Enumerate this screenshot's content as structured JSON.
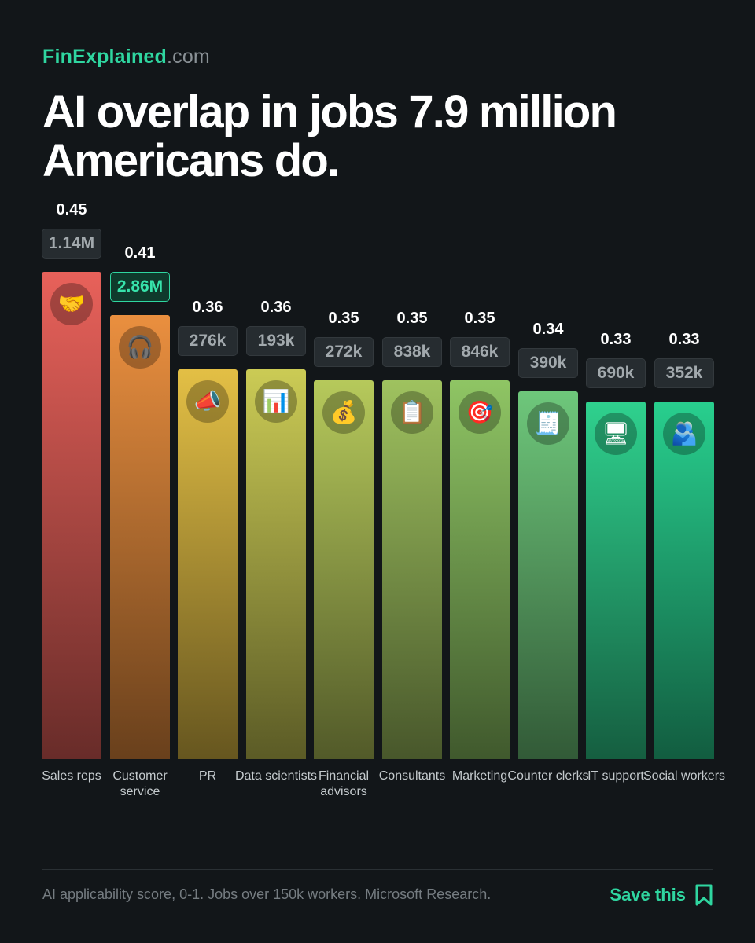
{
  "brand": {
    "name": "FinExplained",
    "suffix": ".com"
  },
  "headline": "AI overlap in jobs 7.9 million Americans do.",
  "chart_data": {
    "type": "bar",
    "title": "AI overlap in jobs 7.9 million Americans do.",
    "categories": [
      "Sales reps",
      "Customer service",
      "PR",
      "Data scientists",
      "Financial advisors",
      "Consultants",
      "Marketing",
      "Counter clerks",
      "IT support",
      "Social workers"
    ],
    "series": [
      {
        "values": [
          0.45,
          0.41,
          0.36,
          0.36,
          0.35,
          0.35,
          0.35,
          0.34,
          0.33,
          0.33
        ]
      }
    ],
    "score_labels": [
      "0.45",
      "0.41",
      "0.36",
      "0.36",
      "0.35",
      "0.35",
      "0.35",
      "0.34",
      "0.33",
      "0.33"
    ],
    "worker_labels": [
      "1.14M",
      "2.86M",
      "276k",
      "193k",
      "272k",
      "838k",
      "846k",
      "390k",
      "690k",
      "352k"
    ],
    "highlighted_index": 1,
    "icons": [
      "handshake-icon",
      "headphones-icon",
      "megaphone-icon",
      "bar-chart-icon",
      "money-bag-icon",
      "clipboard-icon",
      "target-icon",
      "receipt-icon",
      "computer-icon",
      "people-hugging-icon"
    ],
    "icon_glyphs": [
      "🤝",
      "🎧",
      "📣",
      "📊",
      "💰",
      "📋",
      "🎯",
      "🧾",
      "🖥",
      "🫂"
    ],
    "colors": [
      "#e8615a",
      "#ea8f3f",
      "#e3bf45",
      "#cbcb55",
      "#b6c95b",
      "#9fc25f",
      "#8fc564",
      "#6ec77b",
      "#2fd18e",
      "#28cf8e"
    ],
    "xlabel": "",
    "ylabel": "",
    "ylim": [
      0,
      0.45
    ],
    "grid": false,
    "legend": "none"
  },
  "footer": {
    "note": "AI applicability score, 0-1. Jobs over 150k workers. Microsoft Research.",
    "save_label": "Save this"
  }
}
